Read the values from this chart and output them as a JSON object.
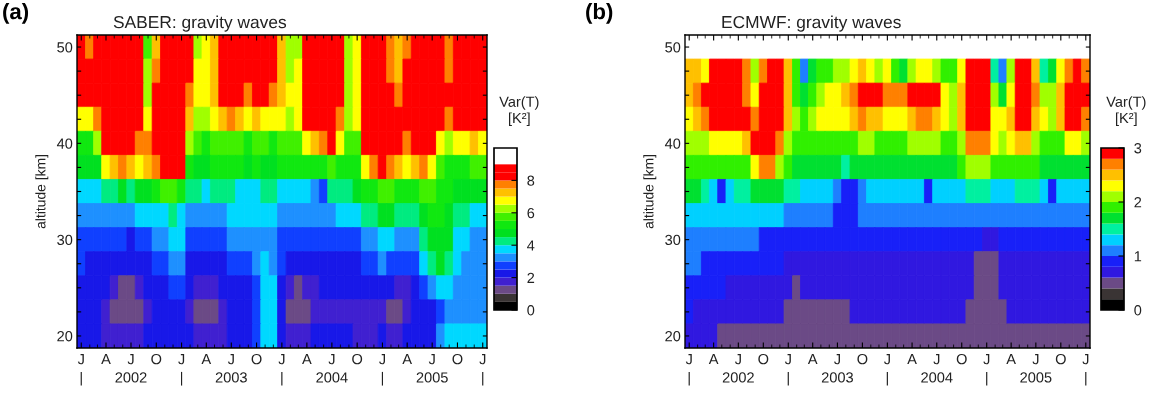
{
  "chart_data": [
    {
      "type": "heatmap",
      "title": "SABER: gravity waves",
      "ylabel": "altitude [km]",
      "clabel": "Var(T)\n[K²]",
      "annotations": [
        "(a)"
      ],
      "x": [
        "2002-01",
        "2002-02",
        "2002-03",
        "2002-04",
        "2002-05",
        "2002-06",
        "2002-07",
        "2002-08",
        "2002-09",
        "2002-10",
        "2002-11",
        "2002-12",
        "2003-01",
        "2003-02",
        "2003-03",
        "2003-04",
        "2003-05",
        "2003-06",
        "2003-07",
        "2003-08",
        "2003-09",
        "2003-10",
        "2003-11",
        "2003-12",
        "2004-01",
        "2004-02",
        "2004-03",
        "2004-04",
        "2004-05",
        "2004-06",
        "2004-07",
        "2004-08",
        "2004-09",
        "2004-10",
        "2004-11",
        "2004-12",
        "2005-01",
        "2005-02",
        "2005-03",
        "2005-04",
        "2005-05",
        "2005-06",
        "2005-07",
        "2005-08",
        "2005-09",
        "2005-10",
        "2005-11",
        "2005-12",
        "2006-01"
      ],
      "xlim": [
        "2001-12-16T12:00",
        "2006-01-16T12:00"
      ],
      "xticks": [
        {
          "value": "2002-01",
          "label": "J\n|"
        },
        {
          "value": "2002-04",
          "label": "A"
        },
        {
          "value": "2002-07",
          "label": "J\n2002"
        },
        {
          "value": "2002-10",
          "label": "O"
        },
        {
          "value": "2003-01",
          "label": "J\n|"
        },
        {
          "value": "2003-04",
          "label": "A"
        },
        {
          "value": "2003-07",
          "label": "J\n2003"
        },
        {
          "value": "2003-10",
          "label": "O"
        },
        {
          "value": "2004-01",
          "label": "J\n|"
        },
        {
          "value": "2004-04",
          "label": "A"
        },
        {
          "value": "2004-07",
          "label": "J\n2004"
        },
        {
          "value": "2004-10",
          "label": "O"
        },
        {
          "value": "2005-01",
          "label": "J\n|"
        },
        {
          "value": "2005-04",
          "label": "A"
        },
        {
          "value": "2005-07",
          "label": "J\n2005"
        },
        {
          "value": "2005-10",
          "label": "O"
        },
        {
          "value": "2006-01",
          "label": "J\n|"
        }
      ],
      "y_categories": [
        "50",
        null,
        null,
        null,
        "40",
        null,
        null,
        null,
        "30",
        null,
        null,
        null,
        "20"
      ],
      "clim": [
        0,
        10
      ],
      "cticks": [
        0,
        2,
        4,
        6,
        8
      ],
      "colors": [
        "#000000",
        "#3a3434",
        "#6b4a86",
        "#4020d0",
        "#1818e8",
        "#1040ff",
        "#1e90ff",
        "#00d8ff",
        "#00eb80",
        "#00e020",
        "#10e810",
        "#40f000",
        "#a0ff00",
        "#ffff00",
        "#ffc000",
        "#ff8000",
        "#ff0000",
        "#ff0000",
        "#ffffff",
        "#ffffff"
      ],
      "cells": [
        [
          8.5,
          7.5,
          8.0,
          8.5,
          8.5,
          8.5,
          8.5,
          8.0,
          5.5,
          7.0,
          8.5,
          8.5,
          8.5,
          8.0,
          6.0,
          6.5,
          7.0,
          8.5,
          8.5,
          8.5,
          8.0,
          8.5,
          8.5,
          8.0,
          7.0,
          6.0,
          6.0,
          8.0,
          8.5,
          8.5,
          8.5,
          8.0,
          6.0,
          6.5,
          8.5,
          8.5,
          8.5,
          7.5,
          7.0,
          7.5,
          8.5,
          8.5,
          8.5,
          8.0,
          7.5,
          8.5,
          8.5,
          8.5,
          8.5
        ],
        [
          8.5,
          8.0,
          8.5,
          8.5,
          8.5,
          8.5,
          8.5,
          8.0,
          6.0,
          7.5,
          8.5,
          8.5,
          8.5,
          8.0,
          6.5,
          6.8,
          7.2,
          8.5,
          8.5,
          8.5,
          8.0,
          8.5,
          8.5,
          8.0,
          7.0,
          6.2,
          6.5,
          8.5,
          8.5,
          8.5,
          8.5,
          8.0,
          6.0,
          6.8,
          8.5,
          8.5,
          8.5,
          7.5,
          7.2,
          8.0,
          8.5,
          8.5,
          8.5,
          8.0,
          7.5,
          8.5,
          8.5,
          8.5,
          8.5
        ],
        [
          8.5,
          8.0,
          8.5,
          8.5,
          8.5,
          8.5,
          8.5,
          8.0,
          6.2,
          8.0,
          8.5,
          8.5,
          8.5,
          7.5,
          6.5,
          6.5,
          7.0,
          8.5,
          8.5,
          8.0,
          7.5,
          8.5,
          8.0,
          7.5,
          7.0,
          6.5,
          6.8,
          8.5,
          8.5,
          8.5,
          8.5,
          8.0,
          6.2,
          6.8,
          8.5,
          8.5,
          8.5,
          8.0,
          7.5,
          8.0,
          8.5,
          8.5,
          8.5,
          8.5,
          8.0,
          8.5,
          8.5,
          8.5,
          8.5
        ],
        [
          6.8,
          6.5,
          7.5,
          8.5,
          8.5,
          8.5,
          8.5,
          8.0,
          6.5,
          8.5,
          8.5,
          8.5,
          8.5,
          7.0,
          6.2,
          6.0,
          6.5,
          7.0,
          7.5,
          7.0,
          6.8,
          7.0,
          6.8,
          6.5,
          6.5,
          6.2,
          6.5,
          8.0,
          8.5,
          8.5,
          8.5,
          7.5,
          6.2,
          6.5,
          8.5,
          8.5,
          8.5,
          8.5,
          8.0,
          8.5,
          8.5,
          8.5,
          8.5,
          8.0,
          7.5,
          8.0,
          8.5,
          8.5,
          8.0
        ],
        [
          5.3,
          5.3,
          6.0,
          8.5,
          8.5,
          8.5,
          8.5,
          7.5,
          7.5,
          8.5,
          8.5,
          8.5,
          8.5,
          6.0,
          5.5,
          5.3,
          5.5,
          5.5,
          5.8,
          5.5,
          5.3,
          5.5,
          5.5,
          5.3,
          5.5,
          5.5,
          5.5,
          6.5,
          7.0,
          7.5,
          8.0,
          6.5,
          5.5,
          5.5,
          8.0,
          8.5,
          8.5,
          8.5,
          8.0,
          7.5,
          8.5,
          8.5,
          8.0,
          6.5,
          6.0,
          6.5,
          6.8,
          7.0,
          6.5
        ],
        [
          4.8,
          4.8,
          4.5,
          6.5,
          7.0,
          7.5,
          7.0,
          6.5,
          7.0,
          7.5,
          8.0,
          8.5,
          8.0,
          5.0,
          4.8,
          4.8,
          5.0,
          5.0,
          5.0,
          5.0,
          4.8,
          5.0,
          4.8,
          4.8,
          5.0,
          5.0,
          5.0,
          5.2,
          5.0,
          5.0,
          5.5,
          5.2,
          5.0,
          5.0,
          6.5,
          7.5,
          8.0,
          7.5,
          7.0,
          6.5,
          7.0,
          7.5,
          6.8,
          5.5,
          5.0,
          5.0,
          5.2,
          5.5,
          5.5
        ],
        [
          3.5,
          3.6,
          3.8,
          4.0,
          4.2,
          4.5,
          4.2,
          4.5,
          4.5,
          5.0,
          5.5,
          5.5,
          5.0,
          4.0,
          4.0,
          3.8,
          4.0,
          4.0,
          4.2,
          3.8,
          3.5,
          3.5,
          4.0,
          4.0,
          3.5,
          3.5,
          3.5,
          3.8,
          3.0,
          2.8,
          4.0,
          4.2,
          4.2,
          4.5,
          5.0,
          5.2,
          5.5,
          5.5,
          5.2,
          5.0,
          5.2,
          5.5,
          5.5,
          5.0,
          5.0,
          4.8,
          4.8,
          4.5,
          4.5
        ],
        [
          3.0,
          3.0,
          3.2,
          3.2,
          3.0,
          3.2,
          3.0,
          3.5,
          3.5,
          3.5,
          3.8,
          4.0,
          3.8,
          3.2,
          3.2,
          3.0,
          3.0,
          3.2,
          3.5,
          3.5,
          3.5,
          3.5,
          3.5,
          3.5,
          3.2,
          3.2,
          3.0,
          3.2,
          3.0,
          3.0,
          3.2,
          3.5,
          3.5,
          3.5,
          4.0,
          4.2,
          4.5,
          4.5,
          4.2,
          4.0,
          4.2,
          4.5,
          5.0,
          5.0,
          4.8,
          4.2,
          4.0,
          3.8,
          3.8
        ],
        [
          2.7,
          2.6,
          2.6,
          2.8,
          2.5,
          2.5,
          2.4,
          2.6,
          2.8,
          3.0,
          3.3,
          3.8,
          3.5,
          2.8,
          2.6,
          2.5,
          2.5,
          2.6,
          3.0,
          3.0,
          3.0,
          3.2,
          3.2,
          3.2,
          2.8,
          2.6,
          2.5,
          2.5,
          2.5,
          2.6,
          2.6,
          2.8,
          2.8,
          2.8,
          3.2,
          3.3,
          3.5,
          3.5,
          3.2,
          3.0,
          3.2,
          4.0,
          4.5,
          4.8,
          4.5,
          3.8,
          3.5,
          3.3,
          3.3
        ],
        [
          2.5,
          2.4,
          2.3,
          2.4,
          2.2,
          2.0,
          2.0,
          2.0,
          2.3,
          2.5,
          2.8,
          3.2,
          3.0,
          2.4,
          2.2,
          2.2,
          2.2,
          2.2,
          2.5,
          2.5,
          2.6,
          3.0,
          3.5,
          3.3,
          2.5,
          2.2,
          2.0,
          2.0,
          2.2,
          2.2,
          2.2,
          2.4,
          2.4,
          2.3,
          2.5,
          2.8,
          3.0,
          2.8,
          2.5,
          2.5,
          2.8,
          3.5,
          4.0,
          4.5,
          4.0,
          3.5,
          3.3,
          3.2,
          3.2
        ],
        [
          2.2,
          2.2,
          2.0,
          2.0,
          1.5,
          1.4,
          1.4,
          1.5,
          2.0,
          2.2,
          2.3,
          2.5,
          2.5,
          2.0,
          1.8,
          1.8,
          1.8,
          2.0,
          2.2,
          2.2,
          2.2,
          2.8,
          3.5,
          3.5,
          2.2,
          1.6,
          1.4,
          1.5,
          1.8,
          2.0,
          2.0,
          2.0,
          2.0,
          2.0,
          2.0,
          2.2,
          2.2,
          2.0,
          1.5,
          1.6,
          2.4,
          2.8,
          3.0,
          3.5,
          3.5,
          3.2,
          3.3,
          3.2,
          3.2
        ],
        [
          2.0,
          2.0,
          2.0,
          1.5,
          1.4,
          1.3,
          1.3,
          1.4,
          1.6,
          2.0,
          2.0,
          2.0,
          2.0,
          1.6,
          1.4,
          1.3,
          1.3,
          1.5,
          2.0,
          2.0,
          2.0,
          2.5,
          3.5,
          3.5,
          2.0,
          1.3,
          1.3,
          1.3,
          1.6,
          1.8,
          1.8,
          1.8,
          1.8,
          1.6,
          1.5,
          1.6,
          1.8,
          1.4,
          1.4,
          1.8,
          2.0,
          2.2,
          2.4,
          2.8,
          3.0,
          3.0,
          3.2,
          3.2,
          3.2
        ],
        [
          2.0,
          2.0,
          2.0,
          1.8,
          1.8,
          1.8,
          1.8,
          1.8,
          2.0,
          2.0,
          2.0,
          2.0,
          2.2,
          2.0,
          1.5,
          1.5,
          1.6,
          1.8,
          2.0,
          2.0,
          2.0,
          2.5,
          3.5,
          3.8,
          2.2,
          1.5,
          1.5,
          1.6,
          2.0,
          2.0,
          2.0,
          2.0,
          2.0,
          1.8,
          1.8,
          1.8,
          2.0,
          1.8,
          1.8,
          2.0,
          2.0,
          2.2,
          2.4,
          3.0,
          3.5,
          3.5,
          3.8,
          3.8,
          3.8
        ]
      ]
    },
    {
      "type": "heatmap",
      "title": "ECMWF: gravity waves",
      "ylabel": "altitude [km]",
      "clabel": "Var(T)\n[K²]",
      "annotations": [
        "(b)"
      ],
      "x": [
        "2002-01",
        "2002-02",
        "2002-03",
        "2002-04",
        "2002-05",
        "2002-06",
        "2002-07",
        "2002-08",
        "2002-09",
        "2002-10",
        "2002-11",
        "2002-12",
        "2003-01",
        "2003-02",
        "2003-03",
        "2003-04",
        "2003-05",
        "2003-06",
        "2003-07",
        "2003-08",
        "2003-09",
        "2003-10",
        "2003-11",
        "2003-12",
        "2004-01",
        "2004-02",
        "2004-03",
        "2004-04",
        "2004-05",
        "2004-06",
        "2004-07",
        "2004-08",
        "2004-09",
        "2004-10",
        "2004-11",
        "2004-12",
        "2005-01",
        "2005-02",
        "2005-03",
        "2005-04",
        "2005-05",
        "2005-06",
        "2005-07",
        "2005-08",
        "2005-09",
        "2005-10",
        "2005-11",
        "2005-12",
        "2006-01"
      ],
      "xlim": [
        "2001-12-16T12:00",
        "2006-01-16T12:00"
      ],
      "xticks": [
        {
          "value": "2002-01",
          "label": "J\n|"
        },
        {
          "value": "2002-04",
          "label": "A"
        },
        {
          "value": "2002-07",
          "label": "J\n2002"
        },
        {
          "value": "2002-10",
          "label": "O"
        },
        {
          "value": "2003-01",
          "label": "J\n|"
        },
        {
          "value": "2003-04",
          "label": "A"
        },
        {
          "value": "2003-07",
          "label": "J\n2003"
        },
        {
          "value": "2003-10",
          "label": "O"
        },
        {
          "value": "2004-01",
          "label": "J\n|"
        },
        {
          "value": "2004-04",
          "label": "A"
        },
        {
          "value": "2004-07",
          "label": "J\n2004"
        },
        {
          "value": "2004-10",
          "label": "O"
        },
        {
          "value": "2005-01",
          "label": "J\n|"
        },
        {
          "value": "2005-04",
          "label": "A"
        },
        {
          "value": "2005-07",
          "label": "J\n2005"
        },
        {
          "value": "2005-10",
          "label": "O"
        },
        {
          "value": "2006-01",
          "label": "J\n|"
        }
      ],
      "y_categories": [
        "50",
        null,
        null,
        null,
        "40",
        null,
        null,
        null,
        "30",
        null,
        null,
        null,
        "20"
      ],
      "clim": [
        0,
        3
      ],
      "cticks": [
        0,
        1,
        2,
        3
      ],
      "colors": [
        "#000000",
        "#3a3434",
        "#6b4a86",
        "#3018e0",
        "#1820f8",
        "#1e7fff",
        "#00d0ff",
        "#00f0a0",
        "#00e030",
        "#30f000",
        "#a0ff00",
        "#ffff00",
        "#ffc000",
        "#ff8000",
        "#ff0000"
      ],
      "cells": [
        [
          null,
          null,
          null,
          null,
          null,
          null,
          null,
          null,
          null,
          null,
          null,
          null,
          null,
          null,
          null,
          null,
          null,
          null,
          null,
          null,
          null,
          null,
          null,
          null,
          null,
          null,
          null,
          null,
          null,
          null,
          null,
          null,
          null,
          null,
          null,
          null,
          null,
          null,
          null,
          null,
          null,
          null,
          null,
          null,
          null,
          null,
          null,
          null,
          null
        ],
        [
          2.4,
          2.5,
          2.3,
          2.8,
          2.8,
          2.8,
          2.8,
          2.6,
          2.0,
          2.7,
          2.8,
          2.8,
          2.5,
          1.8,
          1.0,
          1.6,
          1.8,
          1.9,
          2.0,
          2.0,
          2.2,
          2.4,
          2.3,
          2.1,
          2.2,
          1.8,
          1.7,
          2.0,
          2.2,
          2.3,
          2.1,
          1.9,
          1.8,
          2.2,
          2.8,
          2.8,
          2.8,
          1.5,
          1.0,
          2.0,
          2.8,
          2.8,
          2.4,
          1.4,
          1.6,
          2.2,
          2.7,
          2.8,
          2.6
        ],
        [
          2.5,
          2.7,
          2.8,
          2.8,
          2.8,
          2.8,
          2.8,
          2.7,
          2.2,
          2.8,
          2.8,
          2.8,
          2.5,
          1.9,
          1.6,
          1.8,
          2.0,
          2.2,
          2.3,
          2.4,
          2.6,
          2.8,
          2.8,
          2.8,
          2.7,
          2.6,
          2.6,
          2.8,
          2.8,
          2.8,
          2.8,
          2.2,
          2.0,
          2.4,
          2.8,
          2.8,
          2.8,
          2.0,
          1.7,
          2.3,
          2.8,
          2.8,
          2.6,
          2.0,
          2.0,
          2.4,
          2.8,
          2.8,
          2.8
        ],
        [
          2.3,
          2.5,
          2.7,
          2.8,
          2.8,
          2.8,
          2.8,
          2.8,
          2.6,
          2.8,
          2.8,
          2.8,
          2.4,
          2.0,
          1.9,
          2.0,
          2.2,
          2.3,
          2.2,
          2.2,
          2.4,
          2.6,
          2.5,
          2.4,
          2.3,
          2.3,
          2.3,
          2.5,
          2.7,
          2.7,
          2.5,
          2.2,
          2.1,
          2.4,
          2.8,
          2.8,
          2.8,
          2.3,
          2.2,
          2.5,
          2.8,
          2.8,
          2.5,
          2.2,
          2.1,
          2.4,
          2.8,
          2.8,
          2.6
        ],
        [
          2.0,
          2.0,
          2.1,
          2.2,
          2.3,
          2.2,
          2.2,
          2.4,
          2.8,
          2.8,
          2.8,
          2.7,
          2.0,
          1.8,
          1.8,
          1.9,
          1.9,
          1.9,
          1.8,
          1.8,
          1.9,
          2.0,
          2.0,
          1.9,
          1.9,
          1.8,
          1.9,
          2.0,
          2.0,
          2.0,
          2.0,
          1.9,
          1.9,
          2.1,
          2.6,
          2.7,
          2.6,
          2.3,
          2.1,
          2.2,
          2.4,
          2.5,
          2.0,
          1.9,
          1.8,
          1.9,
          2.2,
          2.2,
          2.1
        ],
        [
          1.8,
          1.8,
          1.8,
          1.8,
          1.8,
          1.8,
          1.8,
          1.9,
          2.3,
          2.6,
          2.6,
          2.1,
          1.8,
          1.7,
          1.7,
          1.7,
          1.7,
          1.7,
          1.6,
          1.5,
          1.6,
          1.7,
          1.7,
          1.7,
          1.6,
          1.6,
          1.7,
          1.7,
          1.7,
          1.7,
          1.7,
          1.7,
          1.7,
          1.8,
          2.0,
          2.1,
          2.0,
          1.9,
          1.8,
          1.8,
          1.9,
          1.9,
          1.8,
          1.7,
          1.6,
          1.6,
          1.7,
          1.7,
          1.7
        ],
        [
          1.7,
          1.6,
          1.5,
          1.2,
          0.9,
          1.2,
          1.4,
          1.5,
          1.6,
          1.7,
          1.7,
          1.6,
          1.5,
          1.4,
          1.3,
          1.3,
          1.3,
          1.2,
          1.0,
          0.9,
          0.9,
          1.1,
          1.2,
          1.2,
          1.2,
          1.2,
          1.2,
          1.3,
          1.2,
          0.9,
          1.2,
          1.3,
          1.3,
          1.3,
          1.4,
          1.4,
          1.4,
          1.3,
          1.3,
          1.3,
          1.4,
          1.4,
          1.4,
          1.3,
          0.9,
          1.2,
          1.3,
          1.3,
          1.3
        ],
        [
          1.3,
          1.3,
          1.3,
          1.2,
          1.2,
          1.2,
          1.2,
          1.2,
          1.2,
          1.2,
          1.2,
          1.2,
          1.1,
          1.1,
          1.1,
          1.0,
          1.0,
          1.0,
          0.9,
          0.9,
          0.9,
          1.0,
          1.0,
          1.0,
          1.0,
          1.0,
          1.0,
          1.0,
          1.0,
          1.0,
          1.0,
          1.0,
          1.0,
          1.0,
          1.0,
          1.0,
          1.0,
          1.0,
          1.0,
          1.0,
          1.0,
          1.1,
          1.1,
          1.1,
          1.1,
          1.0,
          1.0,
          1.0,
          1.0
        ],
        [
          1.1,
          1.1,
          1.1,
          1.0,
          1.0,
          1.0,
          1.0,
          1.0,
          1.0,
          0.9,
          0.9,
          0.9,
          0.9,
          0.9,
          0.8,
          0.8,
          0.8,
          0.8,
          0.8,
          0.8,
          0.8,
          0.8,
          0.8,
          0.8,
          0.8,
          0.8,
          0.8,
          0.9,
          0.9,
          0.9,
          0.9,
          0.8,
          0.8,
          0.8,
          0.8,
          0.8,
          0.7,
          0.7,
          0.8,
          0.8,
          0.8,
          0.9,
          0.9,
          0.9,
          0.9,
          0.8,
          0.8,
          0.8,
          0.8
        ],
        [
          1.0,
          1.0,
          0.9,
          0.9,
          0.9,
          0.9,
          0.8,
          0.8,
          0.8,
          0.8,
          0.8,
          0.8,
          0.7,
          0.6,
          0.7,
          0.7,
          0.7,
          0.7,
          0.7,
          0.7,
          0.7,
          0.7,
          0.7,
          0.7,
          0.7,
          0.7,
          0.7,
          0.7,
          0.7,
          0.7,
          0.7,
          0.7,
          0.7,
          0.6,
          0.6,
          0.5,
          0.5,
          0.5,
          0.6,
          0.7,
          0.7,
          0.7,
          0.7,
          0.7,
          0.7,
          0.7,
          0.7,
          0.7,
          0.7
        ],
        [
          0.9,
          0.9,
          0.8,
          0.8,
          0.8,
          0.7,
          0.7,
          0.7,
          0.7,
          0.7,
          0.7,
          0.7,
          0.6,
          0.5,
          0.6,
          0.6,
          0.6,
          0.6,
          0.6,
          0.6,
          0.6,
          0.6,
          0.6,
          0.6,
          0.6,
          0.6,
          0.6,
          0.6,
          0.6,
          0.6,
          0.6,
          0.6,
          0.6,
          0.6,
          0.6,
          0.5,
          0.5,
          0.5,
          0.6,
          0.6,
          0.6,
          0.6,
          0.6,
          0.6,
          0.6,
          0.6,
          0.6,
          0.6,
          0.6
        ],
        [
          0.8,
          0.7,
          0.7,
          0.7,
          0.6,
          0.6,
          0.6,
          0.6,
          0.6,
          0.6,
          0.6,
          0.6,
          0.5,
          0.5,
          0.5,
          0.5,
          0.5,
          0.5,
          0.5,
          0.5,
          0.6,
          0.6,
          0.6,
          0.6,
          0.6,
          0.6,
          0.6,
          0.6,
          0.6,
          0.6,
          0.6,
          0.6,
          0.6,
          0.6,
          0.5,
          0.5,
          0.5,
          0.5,
          0.5,
          0.6,
          0.6,
          0.6,
          0.6,
          0.6,
          0.6,
          0.6,
          0.6,
          0.6,
          0.6
        ],
        [
          0.7,
          0.7,
          0.6,
          0.6,
          0.5,
          0.5,
          0.5,
          0.5,
          0.5,
          0.5,
          0.5,
          0.5,
          0.5,
          0.5,
          0.5,
          0.5,
          0.5,
          0.5,
          0.5,
          0.5,
          0.5,
          0.5,
          0.5,
          0.5,
          0.5,
          0.5,
          0.5,
          0.5,
          0.5,
          0.5,
          0.5,
          0.5,
          0.5,
          0.5,
          0.5,
          0.5,
          0.5,
          0.5,
          0.5,
          0.5,
          0.5,
          0.5,
          0.5,
          0.5,
          0.5,
          0.5,
          0.5,
          0.5,
          0.5
        ]
      ]
    }
  ]
}
